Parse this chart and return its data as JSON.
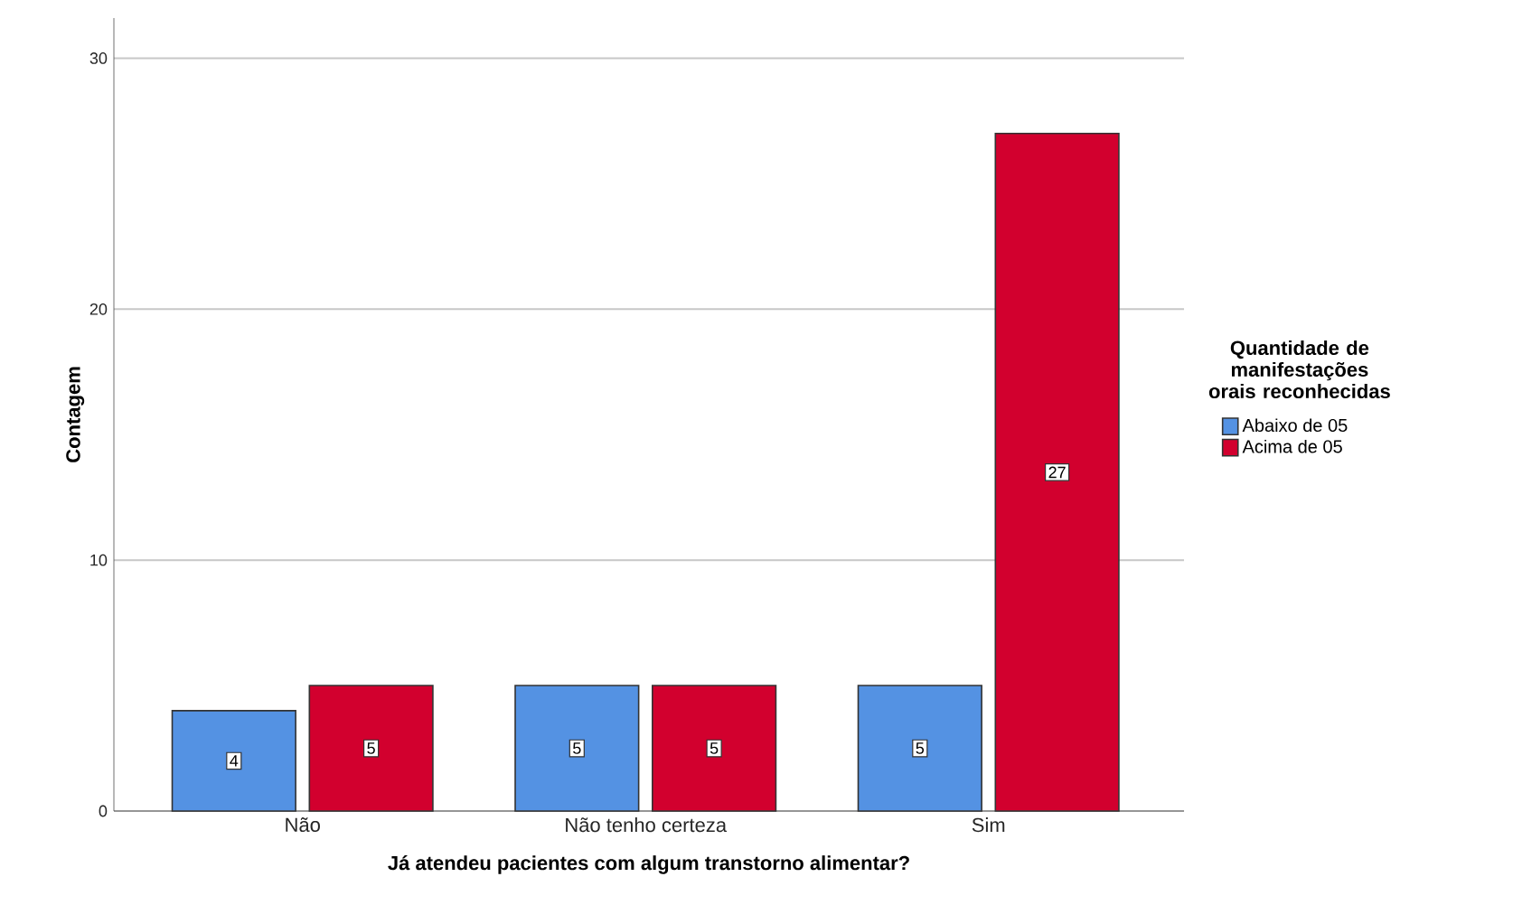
{
  "chart_data": {
    "type": "bar",
    "xlabel": "Já atendeu pacientes com algum transtorno alimentar?",
    "ylabel": "Contagem",
    "legend_title": "Quantidade de manifestações orais reconhecidas",
    "categories": [
      "Não",
      "Não tenho certeza",
      "Sim"
    ],
    "series": [
      {
        "name": "Abaixo de 05",
        "color": "#5492e3",
        "values": [
          4,
          5,
          5
        ]
      },
      {
        "name": "Acima de 05",
        "color": "#d2002e",
        "values": [
          5,
          5,
          27
        ]
      }
    ],
    "ylim": [
      0,
      31.6
    ],
    "yticks": [
      0,
      10,
      20,
      30
    ],
    "grid": "y",
    "legend": "right",
    "data_labels": true
  }
}
